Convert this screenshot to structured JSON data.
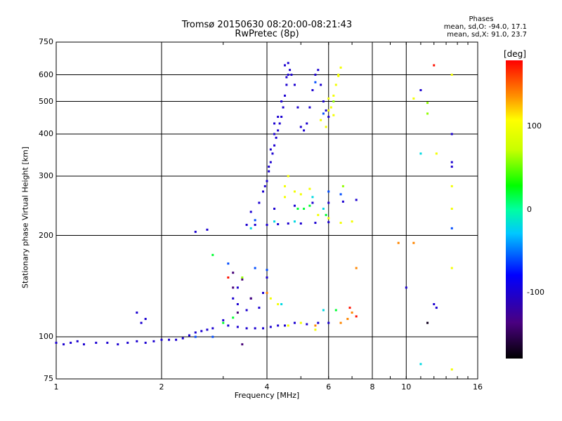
{
  "chart_data": {
    "type": "scatter",
    "title": "Tromsø 20150630 08:20:00-08:21:43",
    "subtitle": "RwPretec (8p)",
    "xlabel": "Frequency [MHz]",
    "ylabel": "Stationary phase Virtual Height [km]",
    "xscale": "log",
    "yscale": "log",
    "xlim": [
      1,
      16
    ],
    "ylim": [
      75,
      750
    ],
    "xticks": [
      1,
      2,
      4,
      6,
      8,
      10,
      16
    ],
    "xtick_labels": [
      "1",
      "2",
      "4",
      "6",
      "8",
      "10",
      "16"
    ],
    "yticks": [
      75,
      100,
      200,
      300,
      400,
      500,
      600,
      750
    ],
    "ytick_labels": [
      "75",
      "100",
      "200",
      "300",
      "400",
      "500",
      "600",
      "750"
    ],
    "grid": true,
    "colorbar": {
      "label": "[deg]",
      "range": [
        -180,
        180
      ],
      "ticks": [
        100,
        0,
        -100
      ],
      "tick_labels": [
        "100",
        "0",
        "-100"
      ]
    },
    "phase_stats": {
      "header": "Phases",
      "line_o": "mean, sd,O: -94.0, 17.1",
      "line_x": "mean, sd,X:  91.0, 23.7"
    },
    "series": [
      {
        "phase": -100,
        "points": [
          [
            1.0,
            96
          ],
          [
            1.05,
            95
          ],
          [
            1.1,
            96
          ],
          [
            1.15,
            97
          ],
          [
            1.2,
            95
          ],
          [
            1.3,
            96
          ],
          [
            1.4,
            96
          ],
          [
            1.5,
            95
          ],
          [
            1.6,
            96
          ],
          [
            1.7,
            97
          ],
          [
            1.8,
            96
          ],
          [
            1.9,
            97
          ],
          [
            2.0,
            98
          ],
          [
            2.1,
            98
          ],
          [
            2.2,
            98
          ],
          [
            2.3,
            99
          ],
          [
            2.4,
            101
          ],
          [
            2.5,
            103
          ],
          [
            2.6,
            104
          ],
          [
            2.7,
            105
          ],
          [
            2.8,
            106
          ],
          [
            1.75,
            110
          ],
          [
            1.8,
            113
          ],
          [
            1.7,
            118
          ],
          [
            3.0,
            112
          ],
          [
            3.1,
            108
          ],
          [
            3.3,
            107
          ],
          [
            3.5,
            106
          ],
          [
            3.7,
            106
          ],
          [
            3.9,
            106
          ],
          [
            4.1,
            107
          ],
          [
            4.3,
            108
          ],
          [
            4.5,
            108
          ],
          [
            4.8,
            110
          ],
          [
            5.2,
            109
          ],
          [
            5.6,
            110
          ],
          [
            6.0,
            110
          ],
          [
            3.2,
            130
          ],
          [
            3.3,
            125
          ],
          [
            3.5,
            120
          ],
          [
            3.6,
            130
          ],
          [
            3.8,
            122
          ],
          [
            4.0,
            150
          ],
          [
            3.3,
            140
          ],
          [
            3.9,
            135
          ],
          [
            3.5,
            215
          ],
          [
            3.7,
            215
          ],
          [
            4.0,
            215
          ],
          [
            4.3,
            216
          ],
          [
            4.6,
            217
          ],
          [
            5.0,
            217
          ],
          [
            5.5,
            218
          ],
          [
            6.0,
            219
          ],
          [
            3.6,
            235
          ],
          [
            4.2,
            240
          ],
          [
            4.8,
            245
          ],
          [
            5.4,
            250
          ],
          [
            6.0,
            250
          ],
          [
            6.6,
            252
          ],
          [
            7.2,
            255
          ],
          [
            3.8,
            250
          ],
          [
            3.9,
            270
          ],
          [
            4.0,
            290
          ],
          [
            4.05,
            310
          ],
          [
            4.1,
            330
          ],
          [
            4.15,
            350
          ],
          [
            4.2,
            370
          ],
          [
            4.25,
            390
          ],
          [
            4.3,
            410
          ],
          [
            4.35,
            430
          ],
          [
            4.4,
            450
          ],
          [
            4.45,
            480
          ],
          [
            4.5,
            520
          ],
          [
            4.55,
            560
          ],
          [
            4.6,
            600
          ],
          [
            4.65,
            620
          ],
          [
            4.7,
            600
          ],
          [
            4.8,
            560
          ],
          [
            4.9,
            480
          ],
          [
            5.0,
            420
          ],
          [
            5.1,
            410
          ],
          [
            5.2,
            430
          ],
          [
            5.3,
            480
          ],
          [
            5.4,
            540
          ],
          [
            5.5,
            600
          ],
          [
            5.6,
            620
          ],
          [
            5.7,
            560
          ],
          [
            5.8,
            500
          ],
          [
            5.9,
            470
          ],
          [
            6.0,
            450
          ],
          [
            4.2,
            400
          ],
          [
            4.3,
            450
          ],
          [
            4.5,
            640
          ],
          [
            4.6,
            650
          ],
          [
            4.4,
            500
          ],
          [
            4.55,
            590
          ],
          [
            3.95,
            280
          ],
          [
            4.05,
            320
          ],
          [
            4.1,
            360
          ],
          [
            4.2,
            430
          ],
          [
            2.5,
            205
          ],
          [
            2.7,
            208
          ],
          [
            11.0,
            540
          ],
          [
            13.5,
            400
          ],
          [
            13.5,
            330
          ],
          [
            13.5,
            320
          ],
          [
            12.2,
            122
          ],
          [
            12.0,
            125
          ],
          [
            10.0,
            140
          ]
        ]
      },
      {
        "phase": -140,
        "points": [
          [
            3.2,
            140
          ],
          [
            3.4,
            148
          ],
          [
            3.2,
            155
          ],
          [
            3.6,
            130
          ],
          [
            3.3,
            118
          ],
          [
            3.4,
            95
          ]
        ]
      },
      {
        "phase": -170,
        "points": [
          [
            11.5,
            110
          ]
        ]
      },
      {
        "phase": -60,
        "points": [
          [
            3.1,
            165
          ],
          [
            3.7,
            160
          ],
          [
            4.0,
            158
          ],
          [
            2.8,
            100
          ],
          [
            2.5,
            100
          ],
          [
            6.0,
            270
          ],
          [
            6.5,
            265
          ],
          [
            3.7,
            222
          ],
          [
            5.5,
            570
          ],
          [
            5.8,
            460
          ],
          [
            13.5,
            210
          ]
        ]
      },
      {
        "phase": -20,
        "points": [
          [
            3.6,
            210
          ],
          [
            4.8,
            220
          ],
          [
            5.4,
            260
          ],
          [
            5.8,
            240
          ],
          [
            4.4,
            125
          ],
          [
            5.8,
            120
          ],
          [
            4.2,
            220
          ],
          [
            11.0,
            350
          ],
          [
            11.0,
            83
          ]
        ]
      },
      {
        "phase": 20,
        "points": [
          [
            4.9,
            240
          ],
          [
            5.1,
            240
          ],
          [
            5.3,
            245
          ],
          [
            3.0,
            110
          ],
          [
            3.2,
            114
          ],
          [
            6.3,
            120
          ],
          [
            5.9,
            230
          ],
          [
            2.8,
            175
          ]
        ]
      },
      {
        "phase": 60,
        "points": [
          [
            11.5,
            460
          ],
          [
            11.5,
            495
          ],
          [
            6.2,
            500
          ],
          [
            6.6,
            280
          ],
          [
            3.4,
            150
          ]
        ]
      },
      {
        "phase": 100,
        "points": [
          [
            6.0,
            470
          ],
          [
            6.1,
            480
          ],
          [
            6.2,
            520
          ],
          [
            6.3,
            560
          ],
          [
            6.4,
            600
          ],
          [
            6.5,
            630
          ],
          [
            5.7,
            440
          ],
          [
            5.9,
            420
          ],
          [
            6.0,
            510
          ],
          [
            4.5,
            280
          ],
          [
            4.6,
            300
          ],
          [
            4.8,
            270
          ],
          [
            5.0,
            265
          ],
          [
            5.3,
            275
          ],
          [
            5.6,
            230
          ],
          [
            6.0,
            225
          ],
          [
            6.5,
            218
          ],
          [
            7.0,
            220
          ],
          [
            4.1,
            130
          ],
          [
            4.3,
            125
          ],
          [
            4.6,
            108
          ],
          [
            5.0,
            110
          ],
          [
            5.5,
            105
          ],
          [
            4.5,
            260
          ],
          [
            6.2,
            455
          ],
          [
            6.4,
            595
          ],
          [
            10.5,
            510
          ],
          [
            12.2,
            350
          ],
          [
            13.5,
            280
          ],
          [
            13.5,
            240
          ],
          [
            13.5,
            600
          ],
          [
            13.5,
            80
          ],
          [
            13.5,
            160
          ]
        ]
      },
      {
        "phase": 140,
        "points": [
          [
            4.0,
            135
          ],
          [
            6.5,
            110
          ],
          [
            7.0,
            118
          ],
          [
            6.8,
            113
          ],
          [
            5.5,
            108
          ],
          [
            10.5,
            190
          ],
          [
            9.5,
            190
          ],
          [
            7.2,
            160
          ]
        ]
      },
      {
        "phase": 175,
        "points": [
          [
            12.0,
            640
          ],
          [
            7.2,
            115
          ],
          [
            6.9,
            122
          ],
          [
            3.1,
            150
          ]
        ]
      }
    ]
  }
}
